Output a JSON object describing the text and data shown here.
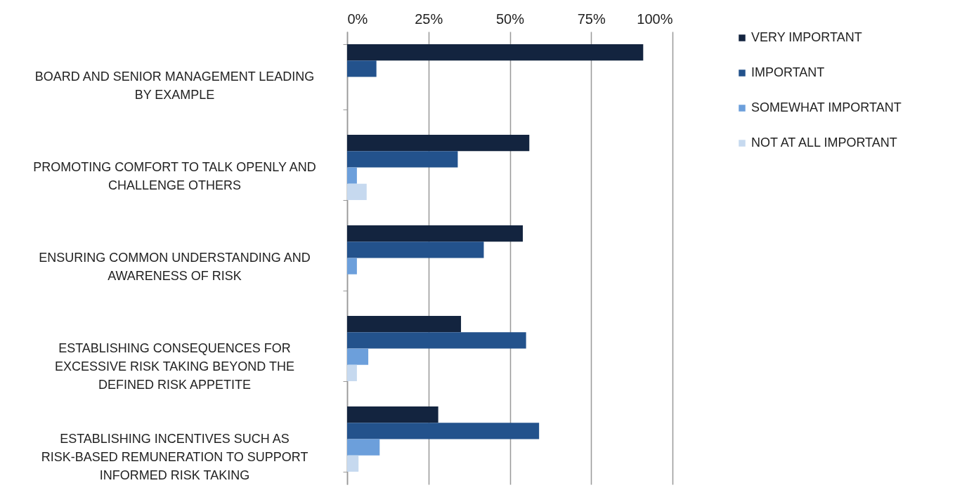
{
  "chart_data": {
    "type": "bar",
    "orientation": "horizontal",
    "categories": [
      "BOARD AND SENIOR MANAGEMENT LEADING BY EXAMPLE",
      "PROMOTING COMFORT TO TALK OPENLY AND CHALLENGE OTHERS",
      "ENSURING COMMON UNDERSTANDING AND AWARENESS OF RISK",
      "ESTABLISHING CONSEQUENCES FOR EXCESSIVE RISK TAKING BEYOND THE DEFINED RISK APPETITE",
      "ESTABLISHING INCENTIVES SUCH AS RISK-BASED REMUNERATION TO SUPPORT INFORMED RISK TAKING"
    ],
    "series": [
      {
        "name": "VERY IMPORTANT",
        "color": "#13243f",
        "values": [
          91,
          56,
          54,
          35,
          28
        ]
      },
      {
        "name": "IMPORTANT",
        "color": "#23528c",
        "values": [
          9,
          34,
          42,
          55,
          59
        ]
      },
      {
        "name": "SOMEWHAT IMPORTANT",
        "color": "#6c9fdb",
        "values": [
          0,
          3,
          3,
          6.5,
          10
        ]
      },
      {
        "name": "NOT AT ALL IMPORTANT",
        "color": "#c6d9ef",
        "values": [
          0,
          6,
          0,
          3,
          3.5
        ]
      }
    ],
    "xlim": [
      0,
      100
    ],
    "xticks": [
      {
        "value": 0,
        "label": "0%"
      },
      {
        "value": 25,
        "label": "25%"
      },
      {
        "value": 50,
        "label": "50%"
      },
      {
        "value": 75,
        "label": "75%"
      },
      {
        "value": 100,
        "label": "100%"
      }
    ],
    "grid": "x",
    "legend": "right"
  }
}
